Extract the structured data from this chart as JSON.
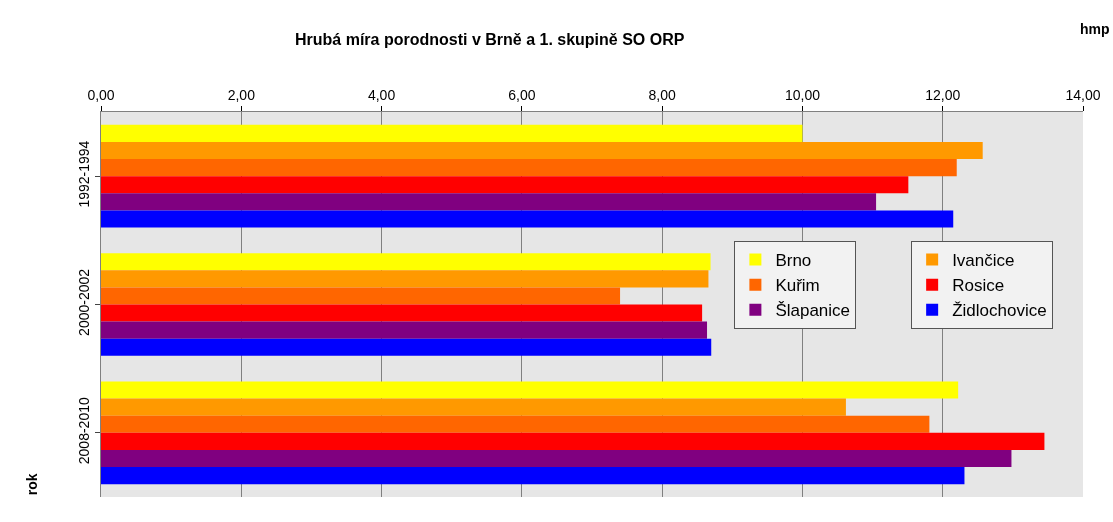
{
  "chart_data": {
    "type": "bar",
    "orientation": "horizontal",
    "title": "Hrubá míra porodnosti v Brně a 1. skupině SO ORP",
    "xlabel": "hmp",
    "ylabel": "rok",
    "categories": [
      "1992-1994",
      "2000-2002",
      "2008-2010"
    ],
    "series": [
      {
        "name": "Brno",
        "color": "#ffff00",
        "values": [
          10.0,
          8.69,
          12.22
        ]
      },
      {
        "name": "Ivančice",
        "color": "#ff9900",
        "values": [
          12.57,
          8.66,
          10.62
        ]
      },
      {
        "name": "Kuřim",
        "color": "#ff6600",
        "values": [
          12.2,
          7.4,
          11.81
        ]
      },
      {
        "name": "Rosice",
        "color": "#ff0000",
        "values": [
          11.51,
          8.57,
          13.45
        ]
      },
      {
        "name": "Šlapanice",
        "color": "#800080",
        "values": [
          11.05,
          8.64,
          12.98
        ]
      },
      {
        "name": "Židlochovice",
        "color": "#0000ff",
        "values": [
          12.15,
          8.7,
          12.31
        ]
      }
    ],
    "xlim": [
      0,
      14
    ],
    "xticks": [
      {
        "value": 0,
        "label": "0,00"
      },
      {
        "value": 2,
        "label": "2,00"
      },
      {
        "value": 4,
        "label": "4,00"
      },
      {
        "value": 6,
        "label": "6,00"
      },
      {
        "value": 8,
        "label": "8,00"
      },
      {
        "value": 10,
        "label": "10,00"
      },
      {
        "value": 12,
        "label": "12,00"
      },
      {
        "value": 14,
        "label": "14,00"
      }
    ],
    "grid": "x",
    "legend": "right"
  }
}
